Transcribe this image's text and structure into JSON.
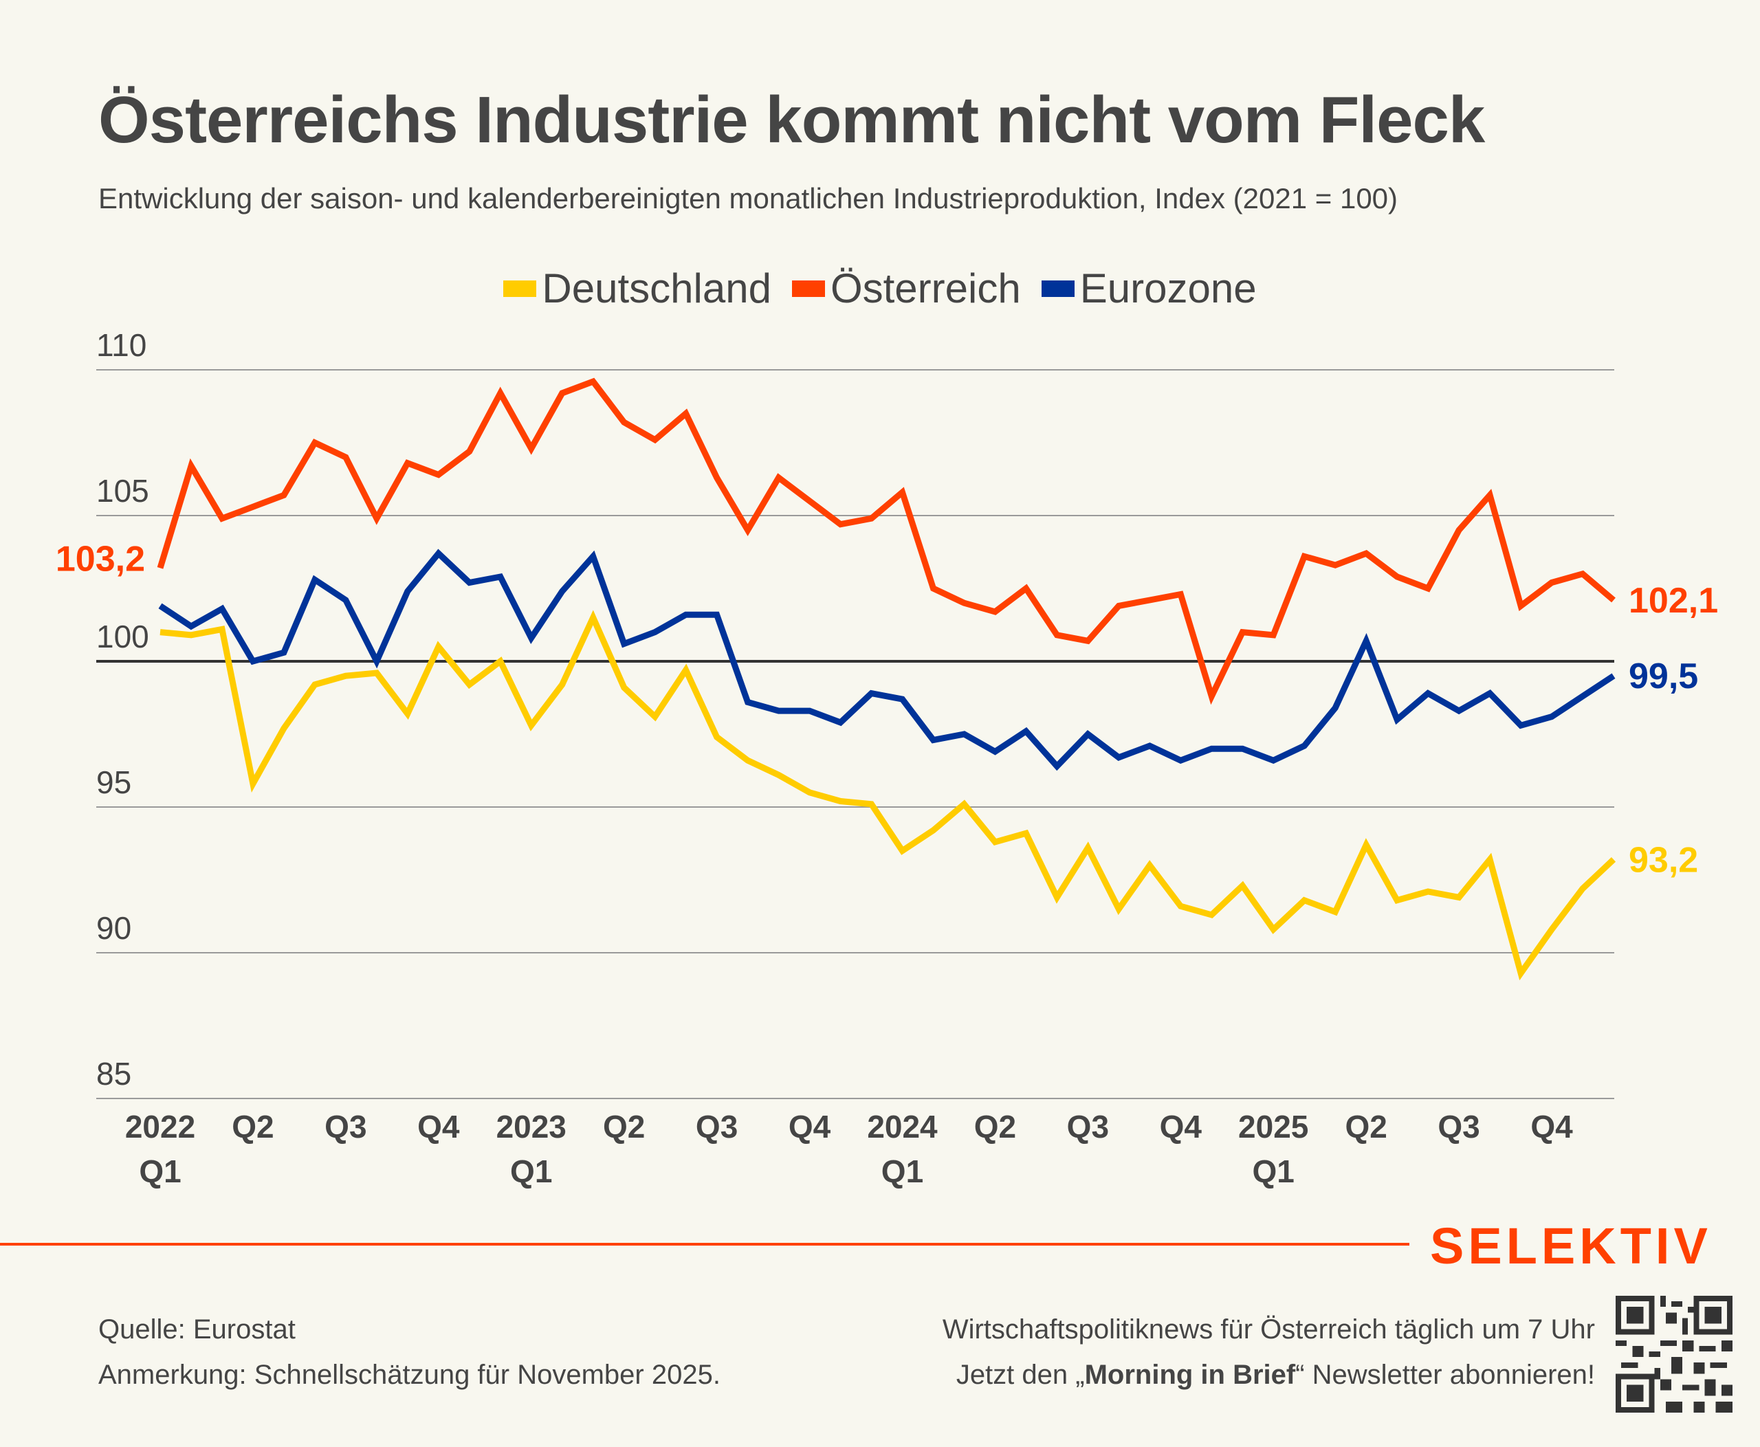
{
  "header": {
    "title": "Österreichs Industrie kommt nicht vom Fleck",
    "subtitle": "Entwicklung der saison- und kalenderbereinigten monatlichen Industrieproduktion, Index (2021 = 100)"
  },
  "colors": {
    "deutschland": "#ffcc00",
    "oesterreich": "#ff4000",
    "eurozone": "#003399",
    "text": "#454545",
    "background": "#f8f7ef"
  },
  "chart_data": {
    "type": "line",
    "title": "Österreichs Industrie kommt nicht vom Fleck",
    "subtitle": "Entwicklung der saison- und kalenderbereinigten monatlichen Industrieproduktion, Index (2021 = 100)",
    "xlabel": "",
    "ylabel": "",
    "ylim": [
      85,
      110
    ],
    "yticks": [
      85,
      90,
      95,
      100,
      105,
      110
    ],
    "grid": true,
    "reference_line": 100,
    "legend_position": "top-center",
    "x_period": "monthly, Jan 2022 onward",
    "xtick_labels": [
      {
        "index": 0,
        "line1": "2022",
        "line2": "Q1"
      },
      {
        "index": 3,
        "line1": "Q2",
        "line2": ""
      },
      {
        "index": 6,
        "line1": "Q3",
        "line2": ""
      },
      {
        "index": 9,
        "line1": "Q4",
        "line2": ""
      },
      {
        "index": 12,
        "line1": "2023",
        "line2": "Q1"
      },
      {
        "index": 15,
        "line1": "Q2",
        "line2": ""
      },
      {
        "index": 18,
        "line1": "Q3",
        "line2": ""
      },
      {
        "index": 21,
        "line1": "Q4",
        "line2": ""
      },
      {
        "index": 24,
        "line1": "2024",
        "line2": "Q1"
      },
      {
        "index": 27,
        "line1": "Q2",
        "line2": ""
      },
      {
        "index": 30,
        "line1": "Q3",
        "line2": ""
      },
      {
        "index": 33,
        "line1": "Q4",
        "line2": ""
      },
      {
        "index": 36,
        "line1": "2025",
        "line2": "Q1"
      },
      {
        "index": 39,
        "line1": "Q2",
        "line2": ""
      },
      {
        "index": 42,
        "line1": "Q3",
        "line2": ""
      },
      {
        "index": 45,
        "line1": "Q4",
        "line2": ""
      }
    ],
    "series": [
      {
        "name": "Deutschland",
        "color": "#ffcc00",
        "start_label": "",
        "end_label": "93,2",
        "values": [
          101.0,
          100.9,
          101.1,
          95.8,
          97.7,
          99.2,
          99.5,
          99.6,
          98.2,
          100.5,
          99.2,
          100.0,
          97.8,
          99.2,
          101.5,
          99.1,
          98.1,
          99.7,
          97.4,
          96.6,
          96.1,
          95.5,
          95.2,
          95.1,
          93.5,
          94.2,
          95.1,
          93.8,
          94.1,
          91.9,
          93.6,
          91.5,
          93.0,
          91.6,
          91.3,
          92.3,
          90.8,
          91.8,
          91.4,
          93.7,
          91.8,
          92.1,
          91.9,
          93.2,
          89.3,
          90.8,
          92.2,
          93.2
        ]
      },
      {
        "name": "Österreich",
        "color": "#ff4000",
        "start_label": "103,2",
        "end_label": "102,1",
        "values": [
          103.2,
          106.7,
          104.9,
          105.3,
          105.7,
          107.5,
          107.0,
          104.9,
          106.8,
          106.4,
          107.2,
          109.2,
          107.3,
          109.2,
          109.6,
          108.2,
          107.6,
          108.5,
          106.3,
          104.5,
          106.3,
          105.5,
          104.7,
          104.9,
          105.8,
          102.5,
          102.0,
          101.7,
          102.5,
          100.9,
          100.7,
          101.9,
          102.1,
          102.3,
          98.8,
          101.0,
          100.9,
          103.6,
          103.3,
          103.7,
          102.9,
          102.5,
          104.5,
          105.7,
          101.9,
          102.7,
          103.0,
          102.1
        ]
      },
      {
        "name": "Eurozone",
        "color": "#003399",
        "start_label": "",
        "end_label": "99,5",
        "values": [
          101.9,
          101.2,
          101.8,
          100.0,
          100.3,
          102.8,
          102.1,
          100.0,
          102.4,
          103.7,
          102.7,
          102.9,
          100.8,
          102.4,
          103.6,
          100.6,
          101.0,
          101.6,
          101.6,
          98.6,
          98.3,
          98.3,
          97.9,
          98.9,
          98.7,
          97.3,
          97.5,
          96.9,
          97.6,
          96.4,
          97.5,
          96.7,
          97.1,
          96.6,
          97.0,
          97.0,
          96.6,
          97.1,
          98.4,
          100.7,
          98.0,
          98.9,
          98.3,
          98.9,
          97.8,
          98.1,
          98.8,
          99.5
        ]
      }
    ]
  },
  "legend": [
    {
      "label": "Deutschland",
      "color": "#ffcc00"
    },
    {
      "label": "Österreich",
      "color": "#ff4000"
    },
    {
      "label": "Eurozone",
      "color": "#003399"
    }
  ],
  "footer": {
    "brand": "SELEKTIV",
    "source": "Quelle: Eurostat",
    "note": "Anmerkung: Schnellschätzung für November 2025.",
    "promo_line1": "Wirtschaftspolitiknews für Österreich täglich um 7 Uhr",
    "promo_line2_prefix": "Jetzt den „",
    "promo_line2_bold": "Morning in Brief",
    "promo_line2_suffix": "“ Newsletter abonnieren!",
    "qr_icon": "qr-code-icon"
  }
}
